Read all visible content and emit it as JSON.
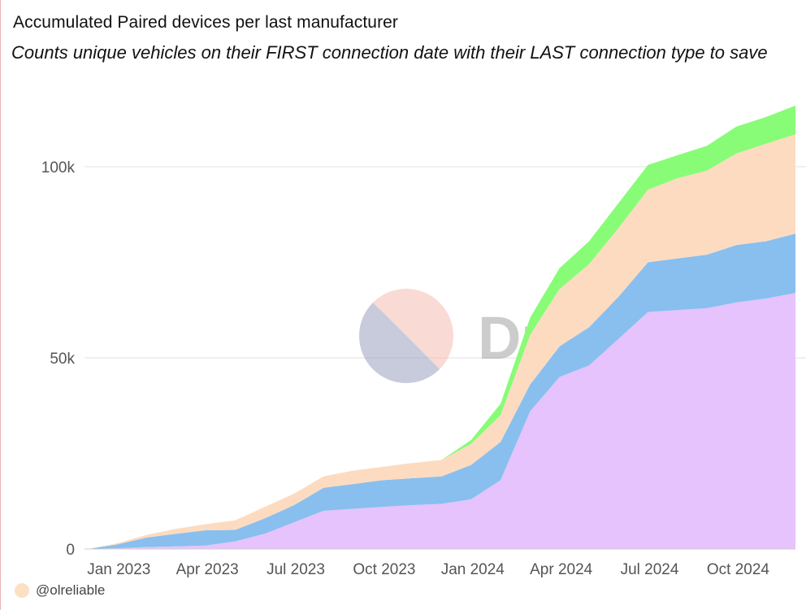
{
  "title": "Accumulated Paired devices per last manufacturer",
  "subtitle": "Counts unique vehicles on their FIRST connection date with their LAST connection type to save",
  "watermark": {
    "text": "Dune"
  },
  "legend": {
    "label": "@olreliable",
    "color": "#fde0c4"
  },
  "chart_data": {
    "type": "area",
    "stacked": true,
    "title": "Accumulated Paired devices per last manufacturer",
    "x": [
      "Dec 2022",
      "Jan 2023",
      "Feb 2023",
      "Mar 2023",
      "Apr 2023",
      "May 2023",
      "Jun 2023",
      "Jul 2023",
      "Aug 2023",
      "Sep 2023",
      "Oct 2023",
      "Nov 2023",
      "Dec 2023",
      "Jan 2024",
      "Feb 2024",
      "Mar 2024",
      "Apr 2024",
      "May 2024",
      "Jun 2024",
      "Jul 2024",
      "Aug 2024",
      "Sep 2024",
      "Oct 2024",
      "Nov 2024",
      "Dec 2024"
    ],
    "x_ticks": [
      "Jan 2023",
      "Apr 2023",
      "Jul 2023",
      "Oct 2023",
      "Jan 2024",
      "Apr 2024",
      "Jul 2024",
      "Oct 2024"
    ],
    "y_ticks": [
      0,
      50000,
      100000
    ],
    "y_tick_labels": [
      "0",
      "50k",
      "100k"
    ],
    "ylim": [
      0,
      120000
    ],
    "grid": true,
    "series": [
      {
        "name": "purple",
        "color": "#e6c3fd",
        "values": [
          0,
          200,
          500,
          700,
          900,
          2000,
          4000,
          7000,
          10000,
          10500,
          11000,
          11500,
          11800,
          13000,
          18000,
          36000,
          45000,
          48000,
          55000,
          62000,
          62500,
          63000,
          64500,
          65500,
          67000
        ]
      },
      {
        "name": "blue",
        "color": "#88bfee",
        "values": [
          0,
          1000,
          2500,
          3300,
          4000,
          3000,
          4000,
          4500,
          6000,
          6500,
          7000,
          7000,
          7200,
          9000,
          10000,
          7000,
          8000,
          10000,
          11000,
          13000,
          13500,
          14000,
          15000,
          15000,
          15500
        ]
      },
      {
        "name": "peach",
        "color": "#fddbc0",
        "values": [
          0,
          300,
          700,
          1300,
          1600,
          2500,
          3000,
          3000,
          3000,
          3500,
          3500,
          4000,
          4300,
          5500,
          7000,
          13000,
          15000,
          16500,
          18000,
          19000,
          21000,
          22000,
          24000,
          25500,
          26000
        ]
      },
      {
        "name": "green",
        "color": "#88fc77",
        "values": [
          0,
          0,
          0,
          0,
          0,
          0,
          0,
          0,
          0,
          0,
          0,
          0,
          0,
          1000,
          3000,
          4500,
          5500,
          6000,
          6500,
          6500,
          6000,
          6500,
          7000,
          7000,
          7500
        ]
      }
    ]
  }
}
